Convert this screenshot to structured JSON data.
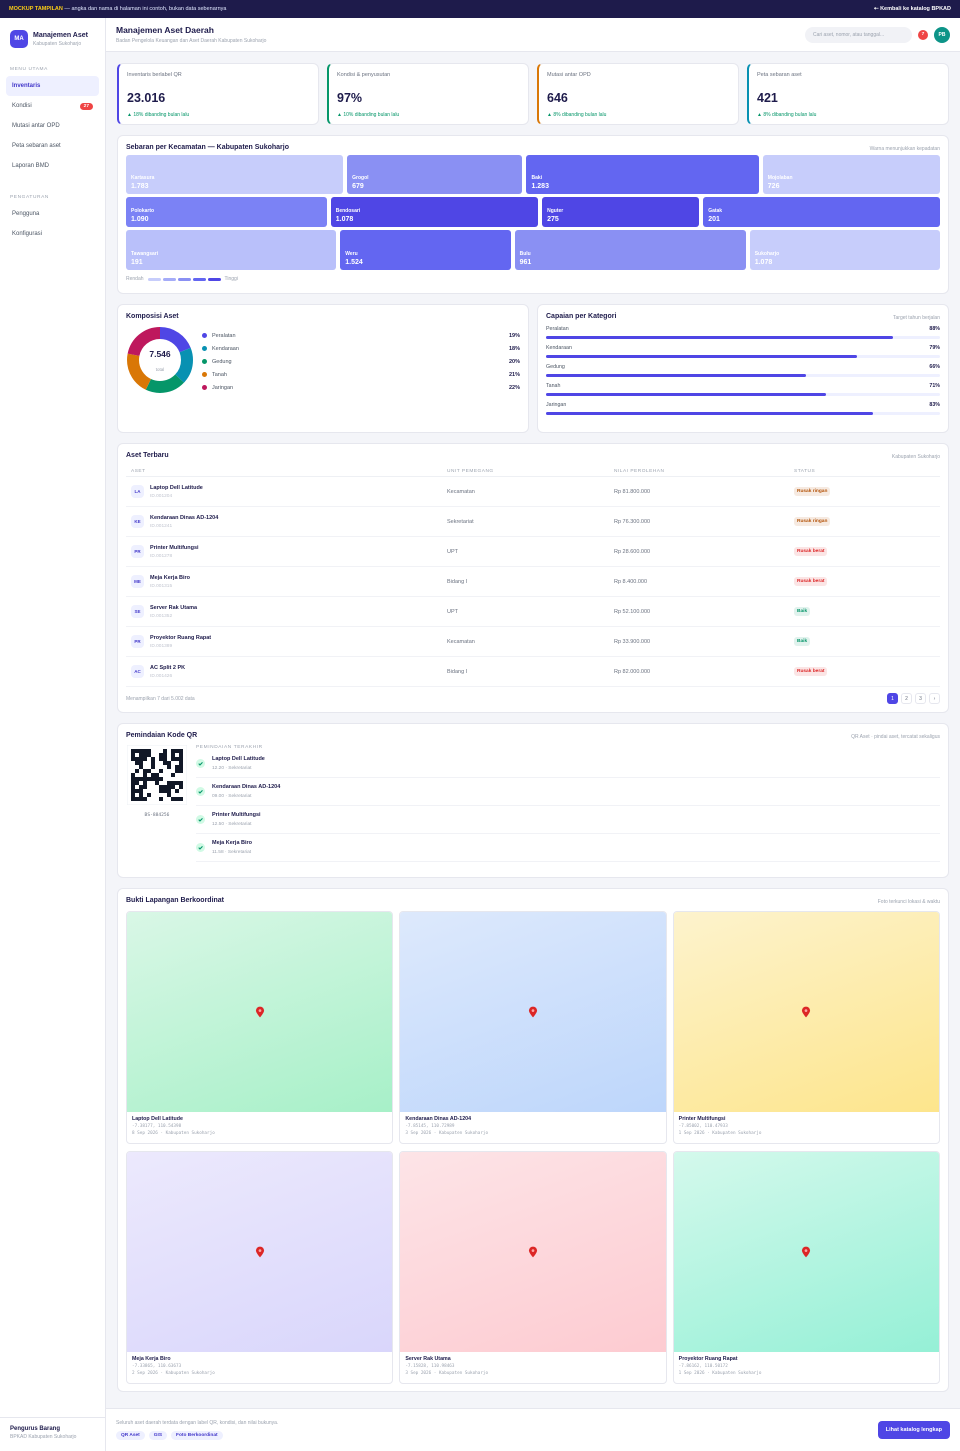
{
  "banner": {
    "tag": "MOCKUP TAMPILAN",
    "text": " — angka dan nama di halaman ini contoh, bukan data sebenarnya",
    "back": "⇠ Kembali ke katalog BPKAD"
  },
  "sidebar": {
    "logo": "MA",
    "app": "Manajemen Aset",
    "region": "Kabupaten Sukoharjo",
    "sections": [
      {
        "title": "MENU UTAMA",
        "items": [
          {
            "label": "Inventaris"
          },
          {
            "label": "Kondisi",
            "badge": "27"
          },
          {
            "label": "Mutasi antar OPD"
          },
          {
            "label": "Peta sebaran aset"
          },
          {
            "label": "Laporan BMD"
          }
        ]
      },
      {
        "title": "PENGATURAN",
        "items": [
          {
            "label": "Pengguna"
          },
          {
            "label": "Konfigurasi"
          }
        ]
      }
    ],
    "user": {
      "name": "Pengurus Barang",
      "org": "BPKAD Kabupaten Sukoharjo"
    }
  },
  "header": {
    "title": "Manajemen Aset Daerah",
    "subtitle": "Badan Pengelola Keuangan dan Aset Daerah Kabupaten Sukoharjo",
    "search": "Cari aset, nomor, atau tanggal...",
    "notifications": "7",
    "avatar": "PB"
  },
  "kpis": [
    {
      "label": "Inventaris berlabel QR",
      "value": "23.016",
      "delta": "▲ 18% dibanding bulan lalu",
      "color": "#4f46e5"
    },
    {
      "label": "Kondisi & penyusutan",
      "value": "97%",
      "delta": "▲ 10% dibanding bulan lalu",
      "color": "#059669"
    },
    {
      "label": "Mutasi antar OPD",
      "value": "646",
      "delta": "▲ 8% dibanding bulan lalu",
      "color": "#d97706"
    },
    {
      "label": "Peta sebaran aset",
      "value": "421",
      "delta": "▲ 8% dibanding bulan lalu",
      "color": "#0891b2"
    }
  ],
  "treemap": {
    "title": "Sebaran per Kecamatan — Kabupaten Sukoharjo",
    "note": "Warna menunjukkan kepadatan",
    "rows": [
      [
        {
          "name": "Kartasura",
          "value": "1.783",
          "color": "#c7cdfb"
        },
        {
          "name": "Grogol",
          "value": "679",
          "color": "#8a90f3"
        },
        {
          "name": "Baki",
          "value": "1.283",
          "color": "#6366f1"
        },
        {
          "name": "Mojolaban",
          "value": "726",
          "color": "#c7cdfb"
        }
      ],
      [
        {
          "name": "Polokarto",
          "value": "1.090",
          "color": "#7b82f5"
        },
        {
          "name": "Bendosari",
          "value": "1.078",
          "color": "#4f46e5"
        },
        {
          "name": "Nguter",
          "value": "275",
          "color": "#4f46e5"
        },
        {
          "name": "Gatak",
          "value": "201",
          "color": "#6366f1"
        }
      ],
      [
        {
          "name": "Tawangsari",
          "value": "191",
          "color": "#b9c0fa"
        },
        {
          "name": "Weru",
          "value": "1.524",
          "color": "#6366f1"
        },
        {
          "name": "Bulu",
          "value": "961",
          "color": "#8a90f3"
        },
        {
          "name": "Sukoharjo",
          "value": "1.078",
          "color": "#c7cdfb"
        }
      ]
    ],
    "legend": {
      "low": "Rendah",
      "high": "Tinggi",
      "colors": [
        "#c7cdfb",
        "#a5acf8",
        "#8a90f3",
        "#6366f1",
        "#4f46e5"
      ]
    }
  },
  "composition": {
    "title": "Komposisi Aset",
    "total": "7.546",
    "total_label": "total",
    "items": [
      {
        "name": "Peralatan",
        "value": 19,
        "label": "19%",
        "color": "#4f46e5"
      },
      {
        "name": "Kendaraan",
        "value": 18,
        "label": "18%",
        "color": "#0891b2"
      },
      {
        "name": "Gedung",
        "value": 20,
        "label": "20%",
        "color": "#059669"
      },
      {
        "name": "Tanah",
        "value": 21,
        "label": "21%",
        "color": "#d97706"
      },
      {
        "name": "Jaringan",
        "value": 22,
        "label": "22%",
        "color": "#be185d"
      }
    ]
  },
  "achievement": {
    "title": "Capaian per Kategori",
    "note": "Target tahun berjalan",
    "xlim": [
      0,
      100
    ],
    "color": "#4f46e5",
    "items": [
      {
        "name": "Peralatan",
        "value": 88,
        "label": "88%"
      },
      {
        "name": "Kendaraan",
        "value": 79,
        "label": "79%"
      },
      {
        "name": "Gedung",
        "value": 66,
        "label": "66%"
      },
      {
        "name": "Tanah",
        "value": 71,
        "label": "71%"
      },
      {
        "name": "Jaringan",
        "value": 83,
        "label": "83%"
      }
    ]
  },
  "assets": {
    "title": "Aset Terbaru",
    "note": "Kabupaten Sukoharjo",
    "columns": [
      "ASET",
      "UNIT PEMEGANG",
      "NILAI PEROLEHAN",
      "STATUS"
    ],
    "rows": [
      {
        "initials": "LA",
        "name": "Laptop Dell Latitude",
        "id": "ID.001204",
        "unit": "Kecamatan",
        "value": "Rp 81.800.000",
        "status": "Rusak ringan",
        "status_color": "#b45309"
      },
      {
        "initials": "KE",
        "name": "Kendaraan Dinas AD-1204",
        "id": "ID.001241",
        "unit": "Sekretariat",
        "value": "Rp 76.300.000",
        "status": "Rusak ringan",
        "status_color": "#b45309"
      },
      {
        "initials": "PR",
        "name": "Printer Multifungsi",
        "id": "ID.001278",
        "unit": "UPT",
        "value": "Rp 28.600.000",
        "status": "Rusak berat",
        "status_color": "#dc2626"
      },
      {
        "initials": "ME",
        "name": "Meja Kerja Biro",
        "id": "ID.001315",
        "unit": "Bidang I",
        "value": "Rp 8.400.000",
        "status": "Rusak berat",
        "status_color": "#dc2626"
      },
      {
        "initials": "SE",
        "name": "Server Rak Utama",
        "id": "ID.001352",
        "unit": "UPT",
        "value": "Rp 52.100.000",
        "status": "Baik",
        "status_color": "#059669"
      },
      {
        "initials": "PR",
        "name": "Proyektor Ruang Rapat",
        "id": "ID.001389",
        "unit": "Kecamatan",
        "value": "Rp 33.900.000",
        "status": "Baik",
        "status_color": "#059669"
      },
      {
        "initials": "AC",
        "name": "AC Split 2 PK",
        "id": "ID.001426",
        "unit": "Bidang I",
        "value": "Rp 82.000.000",
        "status": "Rusak berat",
        "status_color": "#dc2626"
      }
    ],
    "summary": "Menampilkan 7 dari 5.002 data",
    "pages": [
      "1",
      "2",
      "3",
      "›"
    ]
  },
  "qr": {
    "title": "Pemindaian Kode QR",
    "note": "QR Aset · pindai aset, tercatat sekaligus",
    "code": "BS-884256",
    "recent_title": "PEMINDAIAN TERAKHIR",
    "recent": [
      {
        "name": "Laptop Dell Latitude",
        "meta": "12.20 · Sekretariat"
      },
      {
        "name": "Kendaraan Dinas AD-1204",
        "meta": "09.00 · Sekretariat"
      },
      {
        "name": "Printer Multifungsi",
        "meta": "12.50 · Sekretariat"
      },
      {
        "name": "Meja Kerja Biro",
        "meta": "11.58 · Sekretariat"
      }
    ]
  },
  "evidence": {
    "title": "Bukti Lapangan Berkoordinat",
    "note": "Foto terkunci lokasi & waktu",
    "items": [
      {
        "name": "Laptop Dell Latitude",
        "coords": "-7.38177, 110.54398",
        "meta": "8 Sep 2026 · Kabupaten Sukoharjo"
      },
      {
        "name": "Kendaraan Dinas AD-1204",
        "coords": "-7.85145, 110.72989",
        "meta": "3 Sep 2026 · Kabupaten Sukoharjo"
      },
      {
        "name": "Printer Multifungsi",
        "coords": "-7.85002, 110.47933",
        "meta": "1 Sep 2026 · Kabupaten Sukoharjo"
      },
      {
        "name": "Meja Kerja Biro",
        "coords": "-7.33865, 110.63673",
        "meta": "2 Sep 2026 · Kabupaten Sukoharjo"
      },
      {
        "name": "Server Rak Utama",
        "coords": "-7.15828, 110.98463",
        "meta": "3 Sep 2026 · Kabupaten Sukoharjo"
      },
      {
        "name": "Proyektor Ruang Rapat",
        "coords": "-7.86162, 110.50172",
        "meta": "1 Sep 2026 · Kabupaten Sukoharjo"
      }
    ]
  },
  "footer": {
    "text": "Seluruh aset daerah terdata dengan label QR, kondisi, dan nilai bukunya.",
    "chips": [
      "QR Aset",
      "GIS",
      "Foto Berkoordinat"
    ],
    "button": "Lihat katalog lengkap"
  }
}
